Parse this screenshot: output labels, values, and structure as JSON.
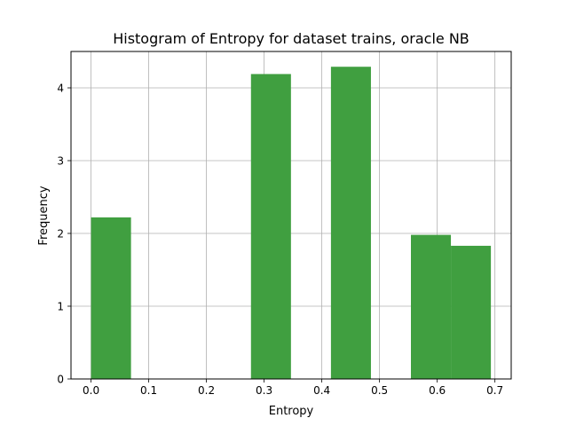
{
  "chart_data": {
    "type": "bar",
    "title": "Histogram of Entropy for dataset trains, oracle NB",
    "xlabel": "Entropy",
    "ylabel": "Frequency",
    "xlim": [
      -0.0347,
      0.7282
    ],
    "ylim": [
      0,
      4.5
    ],
    "xticks": [
      "0.0",
      "0.1",
      "0.2",
      "0.3",
      "0.4",
      "0.5",
      "0.6",
      "0.7"
    ],
    "xtick_values": [
      0.0,
      0.1,
      0.2,
      0.3,
      0.4,
      0.5,
      0.6,
      0.7
    ],
    "yticks": [
      "0",
      "1",
      "2",
      "3",
      "4"
    ],
    "ytick_values": [
      0,
      1,
      2,
      3,
      4
    ],
    "grid": true,
    "bar_color": "#409f40",
    "bins": [
      {
        "x0": 0.0,
        "x1": 0.0693,
        "value": 2.22
      },
      {
        "x0": 0.0693,
        "x1": 0.1386,
        "value": 0
      },
      {
        "x0": 0.1386,
        "x1": 0.2079,
        "value": 0
      },
      {
        "x0": 0.2079,
        "x1": 0.2772,
        "value": 0
      },
      {
        "x0": 0.2772,
        "x1": 0.3465,
        "value": 4.19
      },
      {
        "x0": 0.3465,
        "x1": 0.4158,
        "value": 0
      },
      {
        "x0": 0.4158,
        "x1": 0.4851,
        "value": 4.29
      },
      {
        "x0": 0.4851,
        "x1": 0.5544,
        "value": 0
      },
      {
        "x0": 0.5544,
        "x1": 0.6237,
        "value": 1.98
      },
      {
        "x0": 0.6237,
        "x1": 0.693,
        "value": 1.83
      }
    ]
  }
}
